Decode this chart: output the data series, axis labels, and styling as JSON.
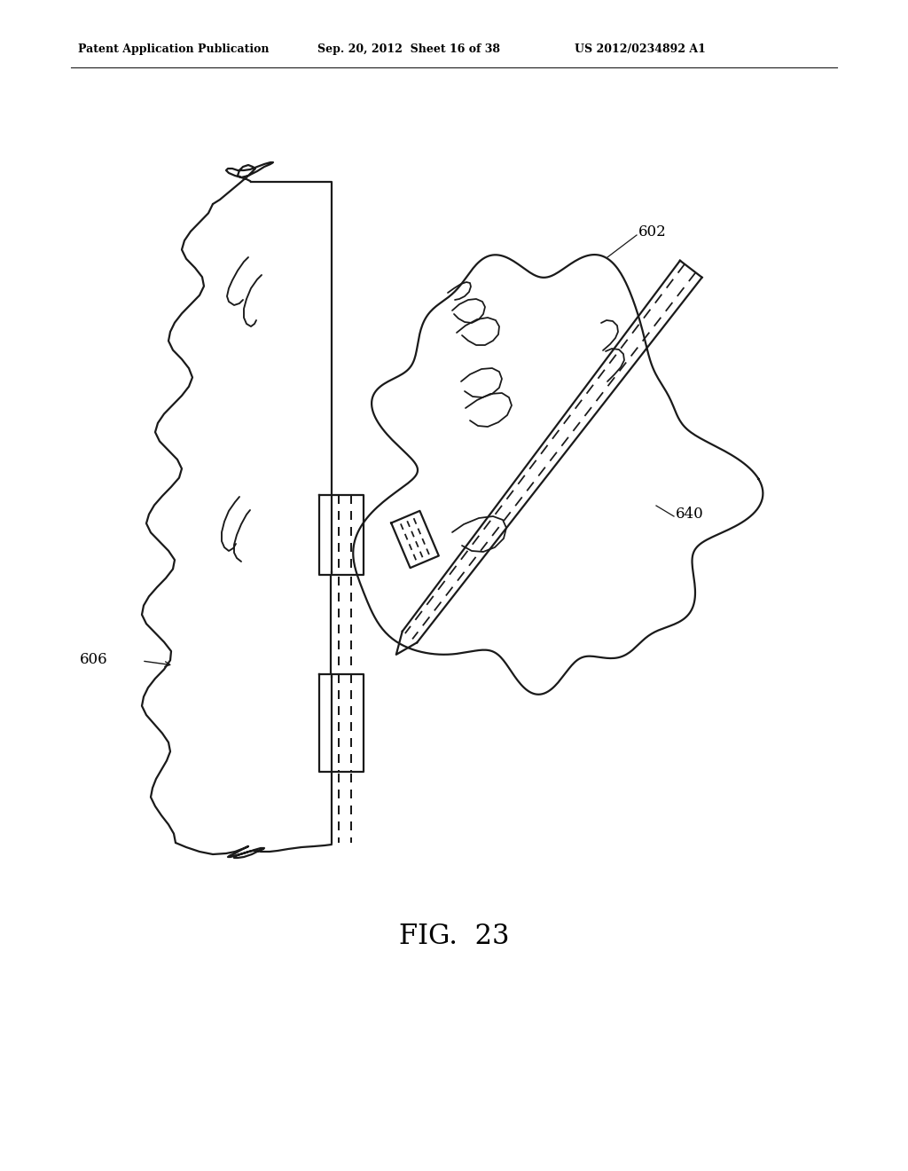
{
  "title_left": "Patent Application Publication",
  "title_center": "Sep. 20, 2012  Sheet 16 of 38",
  "title_right": "US 2012/0234892 A1",
  "fig_label": "FIG.  23",
  "label_602": "602",
  "label_606": "606",
  "label_640": "640",
  "bg_color": "#ffffff",
  "line_color": "#1a1a1a",
  "line_width": 1.6
}
